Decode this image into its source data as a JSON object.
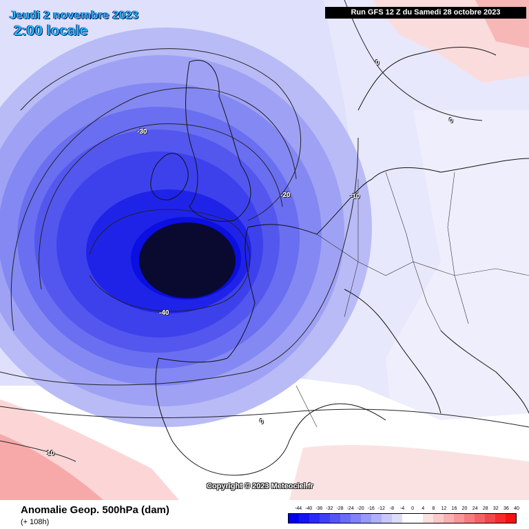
{
  "header": {
    "date": "Jeudi 2 novembre 2023",
    "local_time": "2:00 locale",
    "run_info": "Run GFS 12 Z du Samedi 28 octobre 2023"
  },
  "copyright": "Copyright © 2023 Meteociel.fr",
  "contour_labels": [
    "-30",
    "-20",
    "-10",
    "-40",
    "0",
    "0",
    "0",
    "10"
  ],
  "footer": {
    "title": "Anomalie Geop. 500hPa (dam)",
    "lead": "(+ 108h)"
  },
  "legend": {
    "ticks": [
      "-44",
      "-40",
      "-36",
      "-32",
      "-28",
      "-24",
      "-20",
      "-16",
      "-12",
      "-8",
      "-4",
      "0",
      "4",
      "8",
      "12",
      "16",
      "20",
      "24",
      "28",
      "32",
      "36",
      "40"
    ],
    "colors": [
      "#0000e6",
      "#1414ee",
      "#2a2af2",
      "#3f3ff5",
      "#5555f6",
      "#6b6bf7",
      "#8282f8",
      "#9999f9",
      "#b0b0fa",
      "#c7c7fb",
      "#dcdcfc",
      "#ffffff",
      "#ffffff",
      "#fde0e0",
      "#fbc9c9",
      "#f9b0b0",
      "#f79797",
      "#f57d7d",
      "#f46363",
      "#f34848",
      "#f22d2d",
      "#f21212"
    ]
  }
}
